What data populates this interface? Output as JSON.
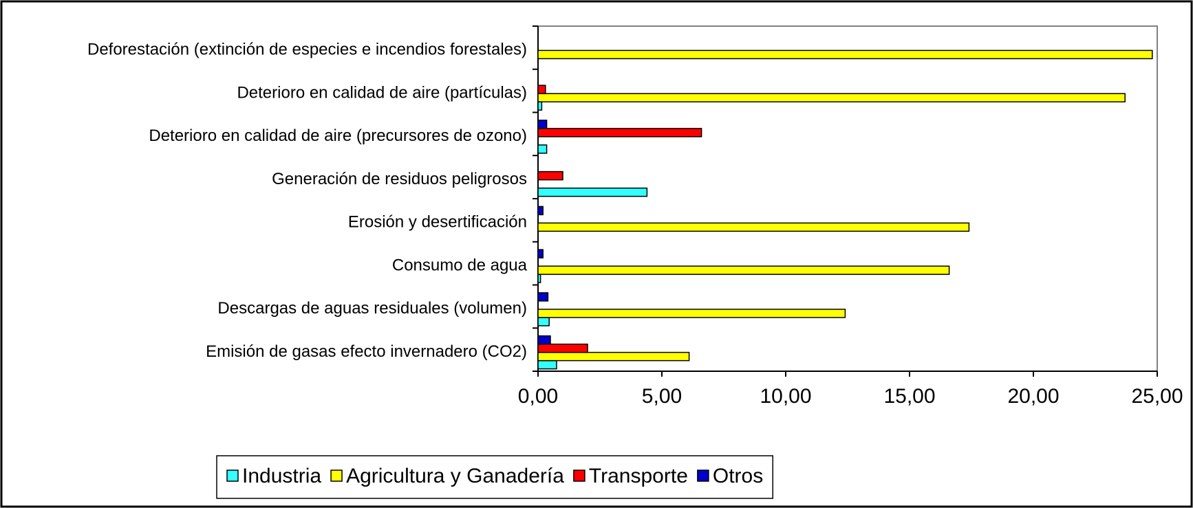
{
  "chart_data": {
    "type": "hbar",
    "categories": [
      "Deforestación (extinción de especies e incendios forestales)",
      "Deterioro en calidad de aire (partículas)",
      "Deterioro en calidad de aire (precursores de ozono)",
      "Generación de residuos peligrosos",
      "Erosión y desertificación",
      "Consumo de agua",
      "Descargas de aguas residuales (volumen)",
      "Emisión de gasas efecto invernadero (CO2)"
    ],
    "series": [
      {
        "name": "Industria",
        "color": "#33ffff",
        "values": [
          0,
          0.15,
          0.35,
          4.4,
          0,
          0.1,
          0.45,
          0.75
        ]
      },
      {
        "name": "Agricultura y Ganadería",
        "color": "#ffff00",
        "values": [
          24.8,
          23.7,
          0,
          0,
          17.4,
          16.6,
          12.4,
          6.1
        ]
      },
      {
        "name": "Transporte",
        "color": "#ff0000",
        "values": [
          0,
          0.3,
          6.6,
          1.0,
          0,
          0,
          0,
          2.0
        ]
      },
      {
        "name": "Otros",
        "color": "#0000cc",
        "values": [
          0,
          0,
          0.35,
          0,
          0.2,
          0.2,
          0.4,
          0.5
        ]
      }
    ],
    "xlim": [
      0,
      25
    ],
    "xticks": [
      {
        "value": 0,
        "label": "0,00"
      },
      {
        "value": 5,
        "label": "5,00"
      },
      {
        "value": 10,
        "label": "10,00"
      },
      {
        "value": 15,
        "label": "15,00"
      },
      {
        "value": 20,
        "label": "20,00"
      },
      {
        "value": 25,
        "label": "25,00"
      }
    ],
    "legend": "bottom"
  }
}
